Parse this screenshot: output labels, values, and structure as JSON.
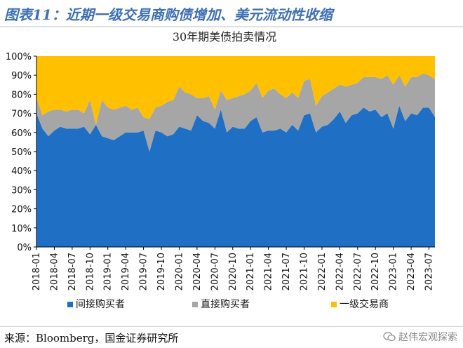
{
  "header": {
    "figure_title": "图表11：近期一级交易商购债增加、美元流动性收缩"
  },
  "footer": {
    "source": "来源：Bloomberg，国金证券研究所",
    "watermark": "赵伟宏观探索"
  },
  "icons": {
    "watermark_icon": "wechat-icon"
  },
  "colors": {
    "indirect": "#1f6fc4",
    "direct": "#a6a6a6",
    "dealers": "#ffc000"
  },
  "chart_data": {
    "type": "area",
    "stacked": true,
    "title": "30年期美债拍卖情况",
    "xlabel": "",
    "ylabel": "",
    "ylim": [
      0,
      100
    ],
    "y_ticks": [
      "0%",
      "10%",
      "20%",
      "30%",
      "40%",
      "50%",
      "60%",
      "70%",
      "80%",
      "90%",
      "100%"
    ],
    "x_tick_labels": [
      "2018-01",
      "2018-04",
      "2018-07",
      "2018-10",
      "2019-01",
      "2019-04",
      "2019-07",
      "2019-10",
      "2020-01",
      "2020-04",
      "2020-07",
      "2020-10",
      "2021-01",
      "2021-04",
      "2021-07",
      "2021-10",
      "2022-01",
      "2022-04",
      "2022-07",
      "2022-10",
      "2023-01",
      "2023-04",
      "2023-07"
    ],
    "x": [
      "2018-01",
      "2018-02",
      "2018-03",
      "2018-04",
      "2018-05",
      "2018-06",
      "2018-07",
      "2018-08",
      "2018-09",
      "2018-10",
      "2018-11",
      "2018-12",
      "2019-01",
      "2019-02",
      "2019-03",
      "2019-04",
      "2019-05",
      "2019-06",
      "2019-07",
      "2019-08",
      "2019-09",
      "2019-10",
      "2019-11",
      "2019-12",
      "2020-01",
      "2020-02",
      "2020-03",
      "2020-04",
      "2020-05",
      "2020-06",
      "2020-07",
      "2020-08",
      "2020-09",
      "2020-10",
      "2020-11",
      "2020-12",
      "2021-01",
      "2021-02",
      "2021-03",
      "2021-04",
      "2021-05",
      "2021-06",
      "2021-07",
      "2021-08",
      "2021-09",
      "2021-10",
      "2021-11",
      "2021-12",
      "2022-01",
      "2022-02",
      "2022-03",
      "2022-04",
      "2022-05",
      "2022-06",
      "2022-07",
      "2022-08",
      "2022-09",
      "2022-10",
      "2022-11",
      "2022-12",
      "2023-01",
      "2023-02",
      "2023-03",
      "2023-04",
      "2023-05",
      "2023-06",
      "2023-07",
      "2023-08"
    ],
    "legend_position": "bottom",
    "series": [
      {
        "name": "间接购买者",
        "color": "#1f6fc4",
        "values": [
          70,
          62,
          58,
          61,
          63,
          62,
          62,
          62,
          63,
          59,
          64,
          58,
          57,
          56,
          58,
          60,
          60,
          60,
          61,
          50,
          61,
          60,
          58,
          59,
          63,
          62,
          61,
          69,
          66,
          65,
          62,
          72,
          60,
          63,
          62,
          62,
          66,
          68,
          60,
          61,
          61,
          62,
          60,
          64,
          61,
          69,
          70,
          60,
          63,
          64,
          67,
          71,
          65,
          69,
          70,
          73,
          71,
          72,
          68,
          70,
          62,
          74,
          66,
          70,
          69,
          73,
          73,
          68
        ]
      },
      {
        "name": "直接购买者",
        "color": "#a6a6a6",
        "values": [
          8,
          7,
          13,
          11,
          9,
          9,
          10,
          10,
          7,
          18,
          0,
          19,
          16,
          16,
          15,
          14,
          12,
          13,
          7,
          17,
          12,
          14,
          18,
          18,
          21,
          19,
          19,
          9,
          12,
          14,
          10,
          10,
          17,
          15,
          17,
          18,
          16,
          18,
          18,
          21,
          22,
          18,
          18,
          17,
          17,
          18,
          18,
          14,
          16,
          17,
          16,
          14,
          19,
          16,
          16,
          16,
          18,
          17,
          20,
          20,
          23,
          16,
          18,
          19,
          20,
          18,
          17,
          20
        ]
      },
      {
        "name": "一级交易商",
        "color": "#ffc000",
        "values": [
          22,
          31,
          29,
          28,
          28,
          29,
          28,
          28,
          30,
          23,
          36,
          23,
          27,
          28,
          27,
          26,
          28,
          27,
          32,
          33,
          27,
          26,
          24,
          23,
          16,
          19,
          20,
          22,
          22,
          21,
          28,
          18,
          23,
          22,
          21,
          20,
          18,
          14,
          22,
          18,
          17,
          20,
          22,
          19,
          22,
          13,
          12,
          26,
          21,
          19,
          17,
          15,
          16,
          15,
          14,
          11,
          11,
          11,
          12,
          10,
          15,
          10,
          16,
          11,
          11,
          9,
          10,
          12
        ]
      }
    ]
  }
}
